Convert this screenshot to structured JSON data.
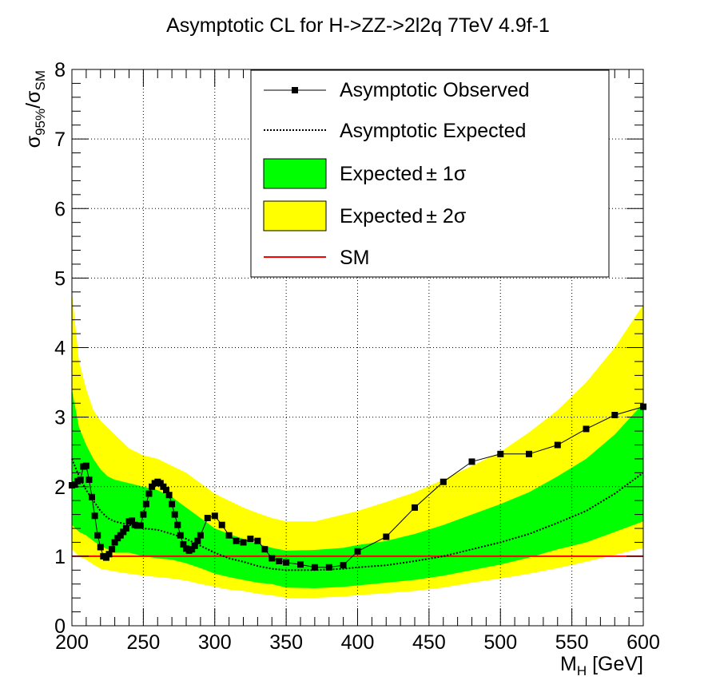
{
  "chart_data": {
    "type": "line",
    "title": "Asymptotic CL for H->ZZ->2l2q  7TeV  4.9f-1",
    "xlabel": {
      "main": "M",
      "sub": "H",
      "rest": " [GeV]"
    },
    "ylabel": {
      "sigma1": "σ",
      "sub1": "95%",
      "slash": "/",
      "sigma2": "σ",
      "sub2": "SM"
    },
    "xlim": [
      200,
      600
    ],
    "ylim": [
      0,
      8
    ],
    "xticks": [
      200,
      250,
      300,
      350,
      400,
      450,
      500,
      550,
      600
    ],
    "yticks": [
      0,
      1,
      2,
      3,
      4,
      5,
      6,
      7,
      8
    ],
    "grid": true,
    "legend_position": "top-right",
    "legend": [
      {
        "key": "observed",
        "label": "Asymptotic Observed"
      },
      {
        "key": "expected",
        "label": "Asymptotic Expected"
      },
      {
        "key": "band1",
        "label": "Expected",
        "pm": "± 1σ"
      },
      {
        "key": "band2",
        "label": "Expected",
        "pm": "± 2σ"
      },
      {
        "key": "sm",
        "label": "SM"
      }
    ],
    "colors": {
      "observed": "#000000",
      "expected": "#000000",
      "band1": "#00ff00",
      "band2": "#ffff00",
      "sm": "#ff0000"
    },
    "sm_value": 1.0,
    "observed": {
      "x": [
        200,
        202,
        204,
        206,
        208,
        210,
        212,
        214,
        216,
        218,
        220,
        222,
        224,
        226,
        228,
        230,
        232,
        234,
        236,
        238,
        240,
        242,
        244,
        246,
        248,
        250,
        252,
        254,
        256,
        258,
        260,
        262,
        264,
        266,
        268,
        270,
        272,
        274,
        276,
        278,
        280,
        282,
        284,
        286,
        288,
        290,
        295,
        300,
        305,
        310,
        315,
        320,
        325,
        330,
        335,
        340,
        345,
        350,
        360,
        370,
        380,
        390,
        400,
        420,
        440,
        460,
        480,
        500,
        520,
        540,
        560,
        580,
        600
      ],
      "y": [
        2.02,
        2.03,
        2.08,
        2.1,
        2.29,
        2.3,
        2.1,
        1.85,
        1.58,
        1.3,
        1.13,
        1.0,
        0.98,
        1.03,
        1.1,
        1.2,
        1.26,
        1.3,
        1.35,
        1.4,
        1.5,
        1.51,
        1.45,
        1.44,
        1.44,
        1.6,
        1.75,
        1.9,
        2.0,
        2.05,
        2.07,
        2.05,
        2.0,
        1.95,
        1.88,
        1.75,
        1.6,
        1.45,
        1.3,
        1.17,
        1.11,
        1.08,
        1.1,
        1.15,
        1.22,
        1.3,
        1.55,
        1.58,
        1.45,
        1.3,
        1.22,
        1.2,
        1.25,
        1.22,
        1.1,
        0.97,
        0.93,
        0.91,
        0.88,
        0.84,
        0.84,
        0.87,
        1.07,
        1.28,
        1.7,
        2.07,
        2.36,
        2.47,
        2.47,
        2.6,
        2.83,
        3.03,
        3.15
      ]
    },
    "expected": {
      "x": [
        200,
        205,
        210,
        215,
        220,
        225,
        230,
        240,
        250,
        260,
        270,
        280,
        290,
        300,
        310,
        320,
        330,
        340,
        350,
        370,
        390,
        400,
        420,
        440,
        460,
        480,
        500,
        520,
        540,
        560,
        580,
        600
      ],
      "y": [
        2.4,
        2.15,
        1.95,
        1.8,
        1.65,
        1.55,
        1.5,
        1.45,
        1.4,
        1.38,
        1.32,
        1.25,
        1.15,
        1.05,
        0.97,
        0.92,
        0.86,
        0.82,
        0.8,
        0.8,
        0.82,
        0.84,
        0.87,
        0.93,
        1.0,
        1.1,
        1.2,
        1.32,
        1.48,
        1.65,
        1.9,
        2.2
      ]
    },
    "band1": {
      "x": [
        200,
        205,
        210,
        215,
        220,
        225,
        230,
        240,
        250,
        260,
        270,
        280,
        290,
        300,
        310,
        320,
        330,
        340,
        350,
        370,
        390,
        400,
        420,
        440,
        460,
        480,
        500,
        520,
        540,
        560,
        580,
        600
      ],
      "lower": [
        1.45,
        1.35,
        1.3,
        1.22,
        1.15,
        1.1,
        1.05,
        1.05,
        1.0,
        0.97,
        0.95,
        0.9,
        0.83,
        0.75,
        0.7,
        0.66,
        0.62,
        0.6,
        0.55,
        0.54,
        0.56,
        0.58,
        0.62,
        0.66,
        0.72,
        0.8,
        0.88,
        0.98,
        1.1,
        1.2,
        1.35,
        1.5
      ],
      "upper": [
        3.4,
        2.85,
        2.6,
        2.4,
        2.25,
        2.15,
        2.1,
        2.05,
        2.0,
        1.95,
        1.85,
        1.7,
        1.55,
        1.4,
        1.32,
        1.25,
        1.18,
        1.12,
        1.08,
        1.09,
        1.12,
        1.16,
        1.22,
        1.32,
        1.45,
        1.6,
        1.75,
        1.92,
        2.15,
        2.4,
        2.75,
        3.2
      ]
    },
    "band2": {
      "x": [
        200,
        205,
        210,
        215,
        220,
        225,
        230,
        240,
        250,
        260,
        270,
        280,
        290,
        300,
        310,
        320,
        330,
        340,
        350,
        370,
        390,
        400,
        420,
        440,
        460,
        480,
        500,
        520,
        540,
        560,
        580,
        600
      ],
      "lower": [
        1.1,
        1.0,
        0.95,
        0.88,
        0.82,
        0.8,
        0.78,
        0.75,
        0.72,
        0.7,
        0.68,
        0.65,
        0.6,
        0.56,
        0.52,
        0.5,
        0.46,
        0.44,
        0.4,
        0.4,
        0.42,
        0.44,
        0.47,
        0.5,
        0.55,
        0.62,
        0.68,
        0.75,
        0.83,
        0.92,
        1.02,
        1.12
      ],
      "upper": [
        4.8,
        3.8,
        3.4,
        3.1,
        2.95,
        2.85,
        2.75,
        2.55,
        2.45,
        2.4,
        2.3,
        2.2,
        2.05,
        1.9,
        1.8,
        1.7,
        1.62,
        1.55,
        1.5,
        1.5,
        1.6,
        1.65,
        1.78,
        1.92,
        2.1,
        2.3,
        2.5,
        2.78,
        3.1,
        3.5,
        4.0,
        4.62
      ]
    }
  }
}
